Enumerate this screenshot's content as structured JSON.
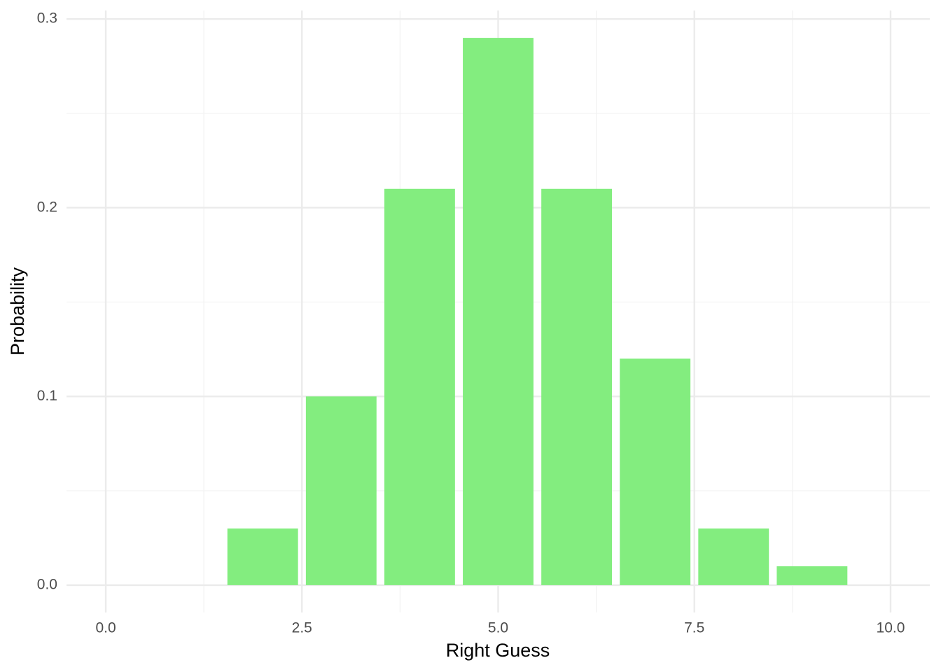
{
  "chart_data": {
    "type": "bar",
    "x_label": "Right Guess",
    "y_label": "Probability",
    "x": [
      2,
      3,
      4,
      5,
      6,
      7,
      8,
      9
    ],
    "values": [
      0.03,
      0.1,
      0.21,
      0.29,
      0.21,
      0.12,
      0.03,
      0.01
    ],
    "color": "#83ed7f",
    "xlim": [
      -0.5,
      10.5
    ],
    "ylim": [
      -0.0145,
      0.3045
    ],
    "xticks": [
      {
        "value": 0,
        "label": "0.0"
      },
      2.5,
      {
        "value": 5,
        "label": "5.0"
      },
      7.5,
      {
        "value": 10,
        "label": "10.0"
      }
    ],
    "yticks": [
      {
        "value": 0,
        "label": "0.0"
      },
      0.1,
      0.2,
      0.3
    ],
    "xminor": [
      1.25,
      3.75,
      6.25,
      8.75
    ],
    "yminor": [
      0.05,
      0.15,
      0.25
    ],
    "grid": true
  }
}
